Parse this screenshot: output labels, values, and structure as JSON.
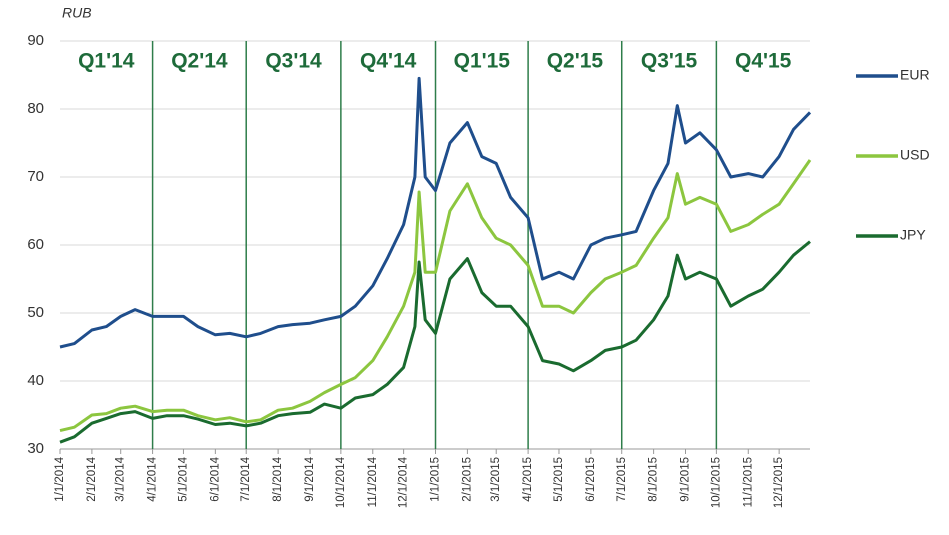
{
  "chart_data": {
    "type": "line",
    "y_label": "RUB",
    "ylim": [
      30,
      90
    ],
    "yticks": [
      30,
      40,
      50,
      60,
      70,
      80,
      90
    ],
    "grid": true,
    "legend": "right",
    "xticks": [
      "1/1/2014",
      "2/1/2014",
      "3/1/2014",
      "4/1/2014",
      "5/1/2014",
      "6/1/2014",
      "7/1/2014",
      "8/1/2014",
      "9/1/2014",
      "10/1/2014",
      "11/1/2014",
      "12/1/2014",
      "1/1/2015",
      "2/1/2015",
      "3/1/2015",
      "4/1/2015",
      "5/1/2015",
      "6/1/2015",
      "7/1/2015",
      "8/1/2015",
      "9/1/2015",
      "10/1/2015",
      "11/1/2015",
      "12/1/2015"
    ],
    "annotations": [
      "Q1'14",
      "Q2'14",
      "Q3'14",
      "Q4'14",
      "Q1'15",
      "Q2'15",
      "Q3'15",
      "Q4'15"
    ],
    "x": [
      "1/1/2014",
      "1/15/2014",
      "2/1/2014",
      "2/15/2014",
      "3/1/2014",
      "3/15/2014",
      "4/1/2014",
      "4/15/2014",
      "5/1/2014",
      "5/15/2014",
      "6/1/2014",
      "6/15/2014",
      "7/1/2014",
      "7/15/2014",
      "8/1/2014",
      "8/15/2014",
      "9/1/2014",
      "9/15/2014",
      "10/1/2014",
      "10/15/2014",
      "11/1/2014",
      "11/15/2014",
      "12/1/2014",
      "12/12/2014",
      "12/16/2014",
      "12/22/2014",
      "1/1/2015",
      "1/15/2015",
      "2/1/2015",
      "2/15/2015",
      "3/1/2015",
      "3/15/2015",
      "4/1/2015",
      "4/15/2015",
      "5/1/2015",
      "5/15/2015",
      "6/1/2015",
      "6/15/2015",
      "7/1/2015",
      "7/15/2015",
      "8/1/2015",
      "8/15/2015",
      "8/24/2015",
      "9/1/2015",
      "9/15/2015",
      "10/1/2015",
      "10/15/2015",
      "11/1/2015",
      "11/15/2015",
      "12/1/2015",
      "12/15/2015",
      "12/31/2015"
    ],
    "series": [
      {
        "name": "EUR",
        "color": "#1f4e8c",
        "values": [
          45,
          45.5,
          47.5,
          48,
          49.5,
          50.5,
          49.5,
          49.5,
          49.5,
          48,
          46.8,
          47,
          46.5,
          47,
          48,
          48.3,
          48.5,
          49,
          49.5,
          51,
          54,
          58,
          63,
          70,
          84.5,
          70,
          68,
          75,
          78,
          73,
          72,
          67,
          64,
          55,
          56,
          55,
          60,
          61,
          61.5,
          62,
          68,
          72,
          80.5,
          75,
          76.5,
          74,
          70,
          70.5,
          70,
          73,
          77,
          79.5
        ]
      },
      {
        "name": "USD",
        "color": "#8cc63f",
        "values": [
          32.7,
          33.2,
          35,
          35.2,
          36,
          36.3,
          35.5,
          35.7,
          35.7,
          34.9,
          34.3,
          34.6,
          34,
          34.3,
          35.7,
          36,
          37,
          38.3,
          39.5,
          40.5,
          43,
          46.5,
          51,
          56,
          67.8,
          56,
          56,
          65,
          69,
          64,
          61,
          60,
          57,
          51,
          51,
          50,
          53,
          55,
          56,
          57,
          61,
          64,
          70.5,
          66,
          67,
          66,
          62,
          63,
          64.5,
          66,
          69,
          72.5
        ]
      },
      {
        "name": "JPY",
        "color": "#1a6b2f",
        "values": [
          31,
          31.8,
          33.8,
          34.5,
          35.2,
          35.5,
          34.5,
          34.9,
          34.9,
          34.4,
          33.6,
          33.8,
          33.4,
          33.8,
          34.9,
          35.2,
          35.4,
          36.6,
          36,
          37.5,
          38,
          39.5,
          42,
          48,
          57.5,
          49,
          47,
          55,
          58,
          53,
          51,
          51,
          48,
          43,
          42.5,
          41.5,
          43,
          44.5,
          45,
          46,
          49,
          52.5,
          58.5,
          55,
          56,
          55,
          51,
          52.5,
          53.5,
          56,
          58.5,
          60.5
        ]
      }
    ]
  }
}
